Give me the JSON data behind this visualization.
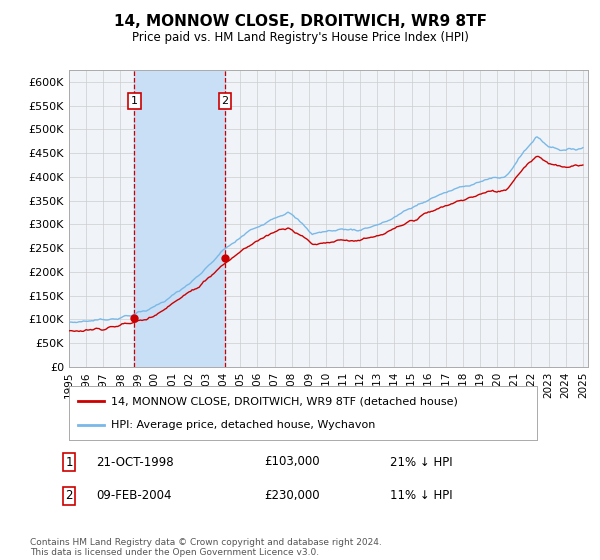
{
  "title": "14, MONNOW CLOSE, DROITWICH, WR9 8TF",
  "subtitle": "Price paid vs. HM Land Registry's House Price Index (HPI)",
  "ylim": [
    0,
    625000
  ],
  "yticks": [
    0,
    50000,
    100000,
    150000,
    200000,
    250000,
    300000,
    350000,
    400000,
    450000,
    500000,
    550000,
    600000
  ],
  "ytick_labels": [
    "£0",
    "£50K",
    "£100K",
    "£150K",
    "£200K",
    "£250K",
    "£300K",
    "£350K",
    "£400K",
    "£450K",
    "£500K",
    "£550K",
    "£600K"
  ],
  "hpi_color": "#7ab8e8",
  "price_color": "#cc0000",
  "marker1_date_num": 1998.81,
  "marker1_price": 103000,
  "marker1_label": "21-OCT-1998",
  "marker1_price_str": "£103,000",
  "marker1_hpi_pct": "21% ↓ HPI",
  "marker2_date_num": 2004.11,
  "marker2_price": 230000,
  "marker2_label": "09-FEB-2004",
  "marker2_price_str": "£230,000",
  "marker2_hpi_pct": "11% ↓ HPI",
  "legend_line1": "14, MONNOW CLOSE, DROITWICH, WR9 8TF (detached house)",
  "legend_line2": "HPI: Average price, detached house, Wychavon",
  "footnote": "Contains HM Land Registry data © Crown copyright and database right 2024.\nThis data is licensed under the Open Government Licence v3.0.",
  "bg_color": "#ffffff",
  "plot_bg_color": "#f0f4f8",
  "grid_color": "#cccccc",
  "shade_color": "#c8dff5"
}
